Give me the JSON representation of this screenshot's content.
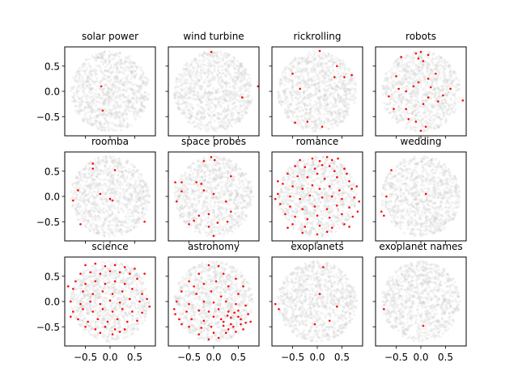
{
  "chart_data": {
    "type": "scatter",
    "grid": false,
    "xlim": [
      -0.92,
      0.92
    ],
    "ylim": [
      -0.88,
      0.88
    ],
    "xticks": [
      -0.5,
      0.0,
      0.5
    ],
    "yticks": [
      -0.5,
      0.0,
      0.5
    ],
    "xtick_labels": [
      "−0.5",
      "0.0",
      "0.5"
    ],
    "ytick_labels": [
      "−0.5",
      "0.0",
      "0.5"
    ],
    "background_color": "#d6d6d6",
    "highlight_color": "#ff0000",
    "panels": [
      {
        "title": "solar power",
        "points": [
          [
            -0.18,
            0.1
          ],
          [
            -0.15,
            -0.38
          ]
        ]
      },
      {
        "title": "wind turbine",
        "points": [
          [
            -0.05,
            0.78
          ],
          [
            0.58,
            -0.12
          ],
          [
            0.9,
            0.1
          ]
        ]
      },
      {
        "title": "rickrolling",
        "points": [
          [
            -0.5,
            0.35
          ],
          [
            0.05,
            0.8
          ],
          [
            0.4,
            0.5
          ],
          [
            0.35,
            0.28
          ],
          [
            0.55,
            0.28
          ],
          [
            0.7,
            0.32
          ],
          [
            -0.35,
            0.05
          ],
          [
            -0.2,
            -0.6
          ],
          [
            -0.45,
            -0.62
          ],
          [
            0.1,
            -0.7
          ]
        ]
      },
      {
        "title": "robots",
        "points": [
          [
            -0.4,
            0.68
          ],
          [
            -0.1,
            0.75
          ],
          [
            0.0,
            0.78
          ],
          [
            0.15,
            0.72
          ],
          [
            -0.05,
            0.65
          ],
          [
            0.05,
            0.6
          ],
          [
            0.3,
            0.35
          ],
          [
            0.15,
            0.25
          ],
          [
            -0.5,
            0.3
          ],
          [
            -0.45,
            0.05
          ],
          [
            -0.3,
            0.0
          ],
          [
            -0.15,
            0.1
          ],
          [
            -0.05,
            0.18
          ],
          [
            0.2,
            0.08
          ],
          [
            0.6,
            0.05
          ],
          [
            -0.65,
            -0.1
          ],
          [
            -0.55,
            -0.35
          ],
          [
            -0.3,
            -0.35
          ],
          [
            0.05,
            -0.25
          ],
          [
            0.15,
            -0.12
          ],
          [
            0.35,
            -0.2
          ],
          [
            0.45,
            -0.08
          ],
          [
            0.85,
            -0.18
          ],
          [
            -0.25,
            -0.55
          ],
          [
            0.1,
            -0.7
          ],
          [
            0.0,
            -0.78
          ],
          [
            -0.1,
            -0.6
          ]
        ]
      },
      {
        "title": "roomba",
        "points": [
          [
            -0.35,
            0.65
          ],
          [
            -0.35,
            0.55
          ],
          [
            0.1,
            0.52
          ],
          [
            -0.65,
            0.12
          ],
          [
            -0.75,
            -0.08
          ],
          [
            -0.2,
            0.05
          ],
          [
            0.0,
            -0.05
          ],
          [
            0.05,
            -0.08
          ],
          [
            -0.6,
            -0.55
          ],
          [
            0.7,
            -0.5
          ]
        ]
      },
      {
        "title": "space probes",
        "points": [
          [
            -0.05,
            0.78
          ],
          [
            0.02,
            0.72
          ],
          [
            -0.2,
            0.7
          ],
          [
            0.35,
            0.4
          ],
          [
            -0.35,
            0.28
          ],
          [
            -0.25,
            0.25
          ],
          [
            -0.78,
            0.28
          ],
          [
            -0.65,
            0.28
          ],
          [
            -0.2,
            0.12
          ],
          [
            0.0,
            0.05
          ],
          [
            -0.65,
            0.1
          ],
          [
            0.25,
            -0.1
          ],
          [
            -0.1,
            -0.35
          ],
          [
            -0.75,
            -0.1
          ],
          [
            0.35,
            -0.3
          ],
          [
            -0.3,
            -0.38
          ],
          [
            -0.4,
            -0.48
          ],
          [
            0.08,
            -0.52
          ],
          [
            0.28,
            -0.5
          ],
          [
            -0.5,
            -0.55
          ],
          [
            -0.1,
            -0.6
          ],
          [
            0.0,
            -0.78
          ]
        ]
      },
      {
        "title": "romance",
        "points": [
          [
            -0.35,
            0.72
          ],
          [
            -0.1,
            0.75
          ],
          [
            0.05,
            0.7
          ],
          [
            0.2,
            0.78
          ],
          [
            0.3,
            0.72
          ],
          [
            0.42,
            0.75
          ],
          [
            -0.45,
            0.6
          ],
          [
            -0.25,
            0.58
          ],
          [
            -0.05,
            0.55
          ],
          [
            0.1,
            0.62
          ],
          [
            0.25,
            0.6
          ],
          [
            0.35,
            0.5
          ],
          [
            0.55,
            0.55
          ],
          [
            -0.6,
            0.45
          ],
          [
            -0.4,
            0.4
          ],
          [
            -0.2,
            0.38
          ],
          [
            0.0,
            0.45
          ],
          [
            0.15,
            0.35
          ],
          [
            0.4,
            0.38
          ],
          [
            0.65,
            0.3
          ],
          [
            -0.7,
            0.25
          ],
          [
            -0.5,
            0.2
          ],
          [
            -0.3,
            0.15
          ],
          [
            -0.1,
            0.22
          ],
          [
            0.05,
            0.15
          ],
          [
            0.25,
            0.2
          ],
          [
            0.45,
            0.12
          ],
          [
            0.7,
            0.15
          ],
          [
            -0.8,
            0.05
          ],
          [
            -0.55,
            0.0
          ],
          [
            -0.35,
            -0.05
          ],
          [
            -0.15,
            0.02
          ],
          [
            0.1,
            -0.02
          ],
          [
            0.3,
            0.0
          ],
          [
            0.5,
            -0.05
          ],
          [
            0.75,
            -0.02
          ],
          [
            -0.75,
            -0.15
          ],
          [
            -0.55,
            -0.2
          ],
          [
            -0.3,
            -0.25
          ],
          [
            -0.05,
            -0.2
          ],
          [
            0.2,
            -0.25
          ],
          [
            0.4,
            -0.18
          ],
          [
            0.65,
            -0.22
          ],
          [
            -0.65,
            -0.35
          ],
          [
            -0.45,
            -0.4
          ],
          [
            -0.2,
            -0.45
          ],
          [
            0.0,
            -0.38
          ],
          [
            0.25,
            -0.42
          ],
          [
            0.5,
            -0.35
          ],
          [
            0.72,
            -0.4
          ],
          [
            -0.5,
            -0.55
          ],
          [
            -0.25,
            -0.6
          ],
          [
            0.05,
            -0.58
          ],
          [
            0.3,
            -0.62
          ],
          [
            0.55,
            -0.55
          ],
          [
            -0.3,
            -0.72
          ],
          [
            0.0,
            -0.75
          ],
          [
            0.2,
            -0.7
          ],
          [
            0.85,
            -0.1
          ],
          [
            0.8,
            0.2
          ],
          [
            -0.85,
            -0.05
          ],
          [
            0.6,
            0.45
          ],
          [
            -0.6,
            -0.62
          ],
          [
            0.65,
            -0.6
          ],
          [
            0.82,
            -0.3
          ],
          [
            -0.8,
            0.3
          ]
        ]
      },
      {
        "title": "wedding",
        "points": [
          [
            -0.6,
            0.52
          ],
          [
            -0.7,
            0.0
          ],
          [
            -0.8,
            -0.3
          ],
          [
            -0.75,
            -0.38
          ],
          [
            0.1,
            0.05
          ]
        ]
      },
      {
        "title": "science",
        "points": [
          [
            -0.5,
            0.72
          ],
          [
            -0.3,
            0.75
          ],
          [
            -0.1,
            0.7
          ],
          [
            0.1,
            0.72
          ],
          [
            0.3,
            0.68
          ],
          [
            -0.6,
            0.55
          ],
          [
            -0.4,
            0.58
          ],
          [
            -0.2,
            0.55
          ],
          [
            0.0,
            0.6
          ],
          [
            0.2,
            0.58
          ],
          [
            0.4,
            0.55
          ],
          [
            -0.7,
            0.4
          ],
          [
            -0.5,
            0.35
          ],
          [
            -0.3,
            0.4
          ],
          [
            -0.1,
            0.35
          ],
          [
            0.1,
            0.4
          ],
          [
            0.3,
            0.35
          ],
          [
            0.55,
            0.45
          ],
          [
            -0.75,
            0.25
          ],
          [
            -0.55,
            0.2
          ],
          [
            -0.35,
            0.15
          ],
          [
            -0.15,
            0.2
          ],
          [
            0.05,
            0.15
          ],
          [
            0.25,
            0.2
          ],
          [
            0.45,
            0.25
          ],
          [
            0.65,
            0.15
          ],
          [
            -0.8,
            0.0
          ],
          [
            -0.6,
            -0.05
          ],
          [
            -0.4,
            0.0
          ],
          [
            -0.2,
            -0.05
          ],
          [
            0.0,
            0.02
          ],
          [
            0.2,
            -0.02
          ],
          [
            0.4,
            0.05
          ],
          [
            0.6,
            0.0
          ],
          [
            0.75,
            0.05
          ],
          [
            -0.75,
            -0.2
          ],
          [
            -0.55,
            -0.15
          ],
          [
            -0.35,
            -0.2
          ],
          [
            -0.15,
            -0.15
          ],
          [
            0.05,
            -0.2
          ],
          [
            0.25,
            -0.15
          ],
          [
            0.45,
            -0.2
          ],
          [
            0.65,
            -0.22
          ],
          [
            -0.65,
            -0.35
          ],
          [
            -0.45,
            -0.4
          ],
          [
            -0.25,
            -0.35
          ],
          [
            -0.05,
            -0.4
          ],
          [
            0.15,
            -0.35
          ],
          [
            0.35,
            -0.4
          ],
          [
            0.55,
            -0.38
          ],
          [
            -0.5,
            -0.5
          ],
          [
            -0.3,
            -0.55
          ],
          [
            -0.1,
            -0.5
          ],
          [
            0.1,
            -0.55
          ],
          [
            0.3,
            -0.55
          ],
          [
            -0.2,
            -0.62
          ],
          [
            0.05,
            -0.65
          ],
          [
            0.2,
            -0.6
          ],
          [
            -0.85,
            0.3
          ],
          [
            0.7,
            0.55
          ],
          [
            0.8,
            -0.1
          ],
          [
            -0.8,
            -0.3
          ],
          [
            0.5,
            0.65
          ]
        ]
      },
      {
        "title": "astronomy",
        "points": [
          [
            -0.1,
            0.72
          ],
          [
            0.1,
            0.7
          ],
          [
            -0.3,
            0.55
          ],
          [
            0.2,
            0.55
          ],
          [
            0.45,
            0.45
          ],
          [
            -0.5,
            0.4
          ],
          [
            -0.2,
            0.35
          ],
          [
            0.05,
            0.4
          ],
          [
            0.3,
            0.3
          ],
          [
            -0.65,
            0.2
          ],
          [
            -0.35,
            0.15
          ],
          [
            -0.05,
            0.2
          ],
          [
            0.15,
            0.1
          ],
          [
            0.5,
            0.15
          ],
          [
            -0.75,
            0.0
          ],
          [
            -0.5,
            -0.05
          ],
          [
            -0.2,
            0.0
          ],
          [
            0.0,
            -0.02
          ],
          [
            0.25,
            0.0
          ],
          [
            0.45,
            -0.05
          ],
          [
            0.65,
            -0.08
          ],
          [
            -0.8,
            -0.15
          ],
          [
            -0.55,
            -0.2
          ],
          [
            -0.3,
            -0.18
          ],
          [
            -0.1,
            -0.2
          ],
          [
            0.1,
            -0.15
          ],
          [
            0.3,
            -0.2
          ],
          [
            0.5,
            -0.18
          ],
          [
            0.7,
            -0.25
          ],
          [
            -0.7,
            -0.35
          ],
          [
            -0.45,
            -0.35
          ],
          [
            -0.2,
            -0.38
          ],
          [
            0.0,
            -0.3
          ],
          [
            0.15,
            -0.35
          ],
          [
            0.35,
            -0.32
          ],
          [
            0.55,
            -0.35
          ],
          [
            0.75,
            -0.4
          ],
          [
            -0.5,
            -0.5
          ],
          [
            -0.25,
            -0.52
          ],
          [
            -0.05,
            -0.5
          ],
          [
            0.2,
            -0.48
          ],
          [
            0.4,
            -0.5
          ],
          [
            0.6,
            -0.55
          ],
          [
            -0.3,
            -0.65
          ],
          [
            0.0,
            -0.62
          ],
          [
            0.25,
            -0.62
          ],
          [
            0.45,
            -0.6
          ],
          [
            -0.1,
            -0.75
          ],
          [
            0.1,
            -0.72
          ],
          [
            0.35,
            -0.45
          ],
          [
            0.28,
            -0.28
          ],
          [
            0.42,
            -0.22
          ],
          [
            0.2,
            -0.4
          ],
          [
            0.55,
            -0.45
          ],
          [
            0.65,
            -0.42
          ],
          [
            0.3,
            -0.55
          ],
          [
            0.5,
            -0.3
          ],
          [
            -0.4,
            0.3
          ],
          [
            0.6,
            0.3
          ],
          [
            -0.78,
            -0.25
          ],
          [
            -0.65,
            -0.45
          ]
        ]
      },
      {
        "title": "exoplanets",
        "points": [
          [
            -0.85,
            -0.05
          ],
          [
            -0.78,
            -0.15
          ],
          [
            0.12,
            0.68
          ],
          [
            0.05,
            0.15
          ],
          [
            0.4,
            -0.1
          ],
          [
            0.25,
            -0.38
          ],
          [
            -0.05,
            -0.45
          ]
        ]
      },
      {
        "title": "exoplanet names",
        "points": [
          [
            -0.75,
            -0.15
          ],
          [
            0.05,
            -0.48
          ]
        ]
      }
    ]
  }
}
